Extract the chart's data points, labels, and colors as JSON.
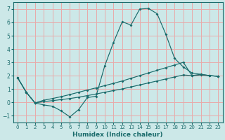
{
  "xlabel": "Humidex (Indice chaleur)",
  "bg_color": "#cce8e8",
  "grid_color": "#e8aaaa",
  "line_color": "#1a6b6b",
  "xlim": [
    -0.5,
    23.5
  ],
  "ylim": [
    -1.5,
    7.5
  ],
  "xticks": [
    0,
    1,
    2,
    3,
    4,
    5,
    6,
    7,
    8,
    9,
    10,
    11,
    12,
    13,
    14,
    15,
    16,
    17,
    18,
    19,
    20,
    21,
    22,
    23
  ],
  "yticks": [
    -1,
    0,
    1,
    2,
    3,
    4,
    5,
    6,
    7
  ],
  "line1_x": [
    0,
    1,
    2,
    3,
    4,
    5,
    6,
    7,
    8,
    9,
    10,
    11,
    12,
    13,
    14,
    15,
    16,
    17,
    18,
    19,
    20,
    21,
    22,
    23
  ],
  "line1_y": [
    1.85,
    0.75,
    -0.05,
    -0.2,
    -0.3,
    -0.65,
    -1.1,
    -0.55,
    0.35,
    0.45,
    2.75,
    4.5,
    6.05,
    5.8,
    7.0,
    7.05,
    6.65,
    5.1,
    3.3,
    2.65,
    2.2,
    2.1,
    2.0,
    1.95
  ],
  "line2_x": [
    0,
    1,
    2,
    3,
    4,
    5,
    6,
    7,
    8,
    9,
    10,
    11,
    12,
    13,
    14,
    15,
    16,
    17,
    18,
    19,
    20,
    21,
    22,
    23
  ],
  "line2_y": [
    1.85,
    0.75,
    -0.05,
    0.05,
    0.12,
    0.2,
    0.28,
    0.38,
    0.5,
    0.62,
    0.75,
    0.88,
    1.0,
    1.15,
    1.3,
    1.45,
    1.6,
    1.75,
    1.9,
    2.05,
    2.0,
    2.05,
    2.0,
    1.95
  ],
  "line3_x": [
    0,
    1,
    2,
    3,
    4,
    5,
    6,
    7,
    8,
    9,
    10,
    11,
    12,
    13,
    14,
    15,
    16,
    17,
    18,
    19,
    20,
    21,
    22,
    23
  ],
  "line3_y": [
    1.85,
    0.75,
    -0.05,
    0.15,
    0.28,
    0.42,
    0.58,
    0.75,
    0.92,
    1.08,
    1.25,
    1.42,
    1.6,
    1.8,
    2.0,
    2.2,
    2.4,
    2.6,
    2.8,
    3.0,
    2.0,
    2.1,
    2.0,
    1.95
  ]
}
